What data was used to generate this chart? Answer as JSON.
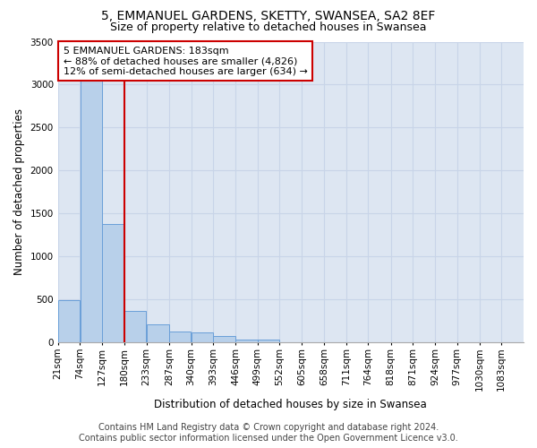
{
  "title": "5, EMMANUEL GARDENS, SKETTY, SWANSEA, SA2 8EF",
  "subtitle": "Size of property relative to detached houses in Swansea",
  "xlabel": "Distribution of detached houses by size in Swansea",
  "ylabel": "Number of detached properties",
  "footer_line1": "Contains HM Land Registry data © Crown copyright and database right 2024.",
  "footer_line2": "Contains public sector information licensed under the Open Government Licence v3.0.",
  "annotation_line1": "5 EMMANUEL GARDENS: 183sqm",
  "annotation_line2": "← 88% of detached houses are smaller (4,826)",
  "annotation_line3": "12% of semi-detached houses are larger (634) →",
  "property_size_x": 180,
  "bar_left_edges": [
    21,
    74,
    127,
    180,
    233,
    287,
    340,
    393,
    446,
    499,
    552,
    605,
    658,
    711,
    764,
    818,
    871,
    924,
    977,
    1030
  ],
  "bar_widths": [
    53,
    53,
    53,
    53,
    54,
    53,
    53,
    53,
    53,
    53,
    53,
    53,
    53,
    53,
    53,
    53,
    53,
    53,
    53,
    53
  ],
  "bar_heights": [
    490,
    3050,
    1380,
    370,
    210,
    125,
    115,
    75,
    30,
    30,
    0,
    0,
    0,
    0,
    0,
    0,
    0,
    0,
    0,
    0
  ],
  "bar_color": "#b8d0ea",
  "bar_edge_color": "#6a9fd8",
  "red_line_color": "#cc0000",
  "grid_color": "#c8d4e8",
  "bg_color": "#dde6f2",
  "annotation_box_edge": "#cc0000",
  "tick_labels": [
    "21sqm",
    "74sqm",
    "127sqm",
    "180sqm",
    "233sqm",
    "287sqm",
    "340sqm",
    "393sqm",
    "446sqm",
    "499sqm",
    "552sqm",
    "605sqm",
    "658sqm",
    "711sqm",
    "764sqm",
    "818sqm",
    "871sqm",
    "924sqm",
    "977sqm",
    "1030sqm",
    "1083sqm"
  ],
  "ylim": [
    0,
    3500
  ],
  "yticks": [
    0,
    500,
    1000,
    1500,
    2000,
    2500,
    3000,
    3500
  ],
  "xlim_left": 21,
  "xlim_right": 1136,
  "title_fontsize": 10,
  "subtitle_fontsize": 9,
  "axis_label_fontsize": 8.5,
  "tick_fontsize": 7.5,
  "annotation_fontsize": 8,
  "footer_fontsize": 7
}
